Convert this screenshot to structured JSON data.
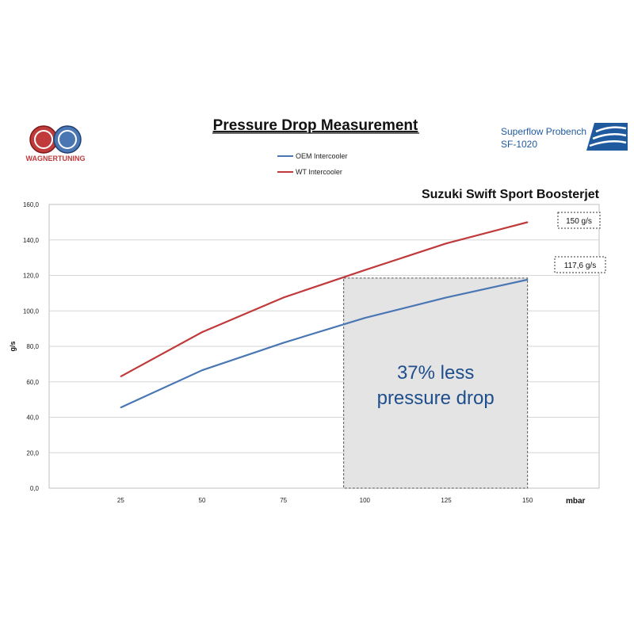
{
  "header": {
    "title": "Pressure Drop Measurement",
    "bench_line1": "Superflow Probench",
    "bench_line2": "SF-1020",
    "logo_text": "WAGNERTUNING"
  },
  "colors": {
    "oem": "#4a77b4",
    "wt": "#c0393b",
    "highlight_fill": "#e4e4e4",
    "highlight_text": "#1f4e8c",
    "superflow_blue": "#1f5a9e"
  },
  "chart_data": {
    "type": "line",
    "title": "Suzuki Swift Sport Boosterjet",
    "xlabel": "mbar",
    "ylabel": "g/s",
    "categories": [
      "25",
      "50",
      "75",
      "100",
      "125",
      "150"
    ],
    "x": [
      25,
      50,
      75,
      100,
      125,
      150
    ],
    "ylim": [
      0,
      160
    ],
    "yticks": [
      "0,0",
      "20,0",
      "40,0",
      "60,0",
      "80,0",
      "100,0",
      "120,0",
      "140,0",
      "160,0"
    ],
    "grid": "horizontal",
    "legend": "top-left",
    "series": [
      {
        "name": "OEM Intercooler",
        "values": [
          45.5,
          66.5,
          82,
          96,
          107.5,
          117.6
        ]
      },
      {
        "name": "WT Intercooler",
        "values": [
          63,
          88,
          107.5,
          123,
          138,
          150
        ]
      }
    ],
    "annotations": [
      {
        "text": "150 g/s",
        "series": 1
      },
      {
        "text": "117,6 g/s",
        "series": 0
      }
    ],
    "highlight": {
      "line1": "37% less",
      "line2": "pressure drop",
      "x_from": 93.5,
      "x_to": 150,
      "y_to": 118.5
    }
  }
}
